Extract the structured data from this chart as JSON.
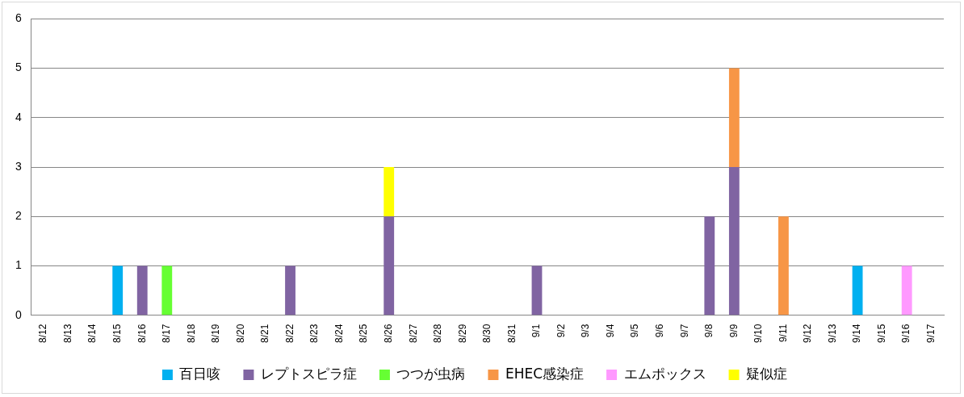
{
  "chart_data": {
    "type": "bar",
    "stacked": true,
    "categories": [
      "8/12",
      "8/13",
      "8/14",
      "8/15",
      "8/16",
      "8/17",
      "8/18",
      "8/19",
      "8/20",
      "8/21",
      "8/22",
      "8/23",
      "8/24",
      "8/25",
      "8/26",
      "8/27",
      "8/28",
      "8/29",
      "8/30",
      "8/31",
      "9/1",
      "9/2",
      "9/3",
      "9/4",
      "9/5",
      "9/6",
      "9/7",
      "9/8",
      "9/9",
      "9/10",
      "9/11",
      "9/12",
      "9/13",
      "9/14",
      "9/15",
      "9/16",
      "9/17"
    ],
    "series": [
      {
        "name": "百日咳",
        "color": "#00b0f0",
        "values": [
          0,
          0,
          0,
          1,
          0,
          0,
          0,
          0,
          0,
          0,
          0,
          0,
          0,
          0,
          0,
          0,
          0,
          0,
          0,
          0,
          0,
          0,
          0,
          0,
          0,
          0,
          0,
          0,
          0,
          0,
          0,
          0,
          0,
          1,
          0,
          0,
          0
        ]
      },
      {
        "name": "レプトスピラ症",
        "color": "#8064a2",
        "values": [
          0,
          0,
          0,
          0,
          1,
          0,
          0,
          0,
          0,
          0,
          1,
          0,
          0,
          0,
          2,
          0,
          0,
          0,
          0,
          0,
          1,
          0,
          0,
          0,
          0,
          0,
          0,
          2,
          3,
          0,
          0,
          0,
          0,
          0,
          0,
          0,
          0
        ]
      },
      {
        "name": "つつが虫病",
        "color": "#66ff33",
        "values": [
          0,
          0,
          0,
          0,
          0,
          1,
          0,
          0,
          0,
          0,
          0,
          0,
          0,
          0,
          0,
          0,
          0,
          0,
          0,
          0,
          0,
          0,
          0,
          0,
          0,
          0,
          0,
          0,
          0,
          0,
          0,
          0,
          0,
          0,
          0,
          0,
          0
        ]
      },
      {
        "name": "EHEC感染症",
        "color": "#f79646",
        "values": [
          0,
          0,
          0,
          0,
          0,
          0,
          0,
          0,
          0,
          0,
          0,
          0,
          0,
          0,
          0,
          0,
          0,
          0,
          0,
          0,
          0,
          0,
          0,
          0,
          0,
          0,
          0,
          0,
          2,
          0,
          2,
          0,
          0,
          0,
          0,
          0,
          0
        ]
      },
      {
        "name": "エムポックス",
        "color": "#ff99ff",
        "values": [
          0,
          0,
          0,
          0,
          0,
          0,
          0,
          0,
          0,
          0,
          0,
          0,
          0,
          0,
          0,
          0,
          0,
          0,
          0,
          0,
          0,
          0,
          0,
          0,
          0,
          0,
          0,
          0,
          0,
          0,
          0,
          0,
          0,
          0,
          0,
          1,
          0
        ]
      },
      {
        "name": "疑似症",
        "color": "#ffff00",
        "values": [
          0,
          0,
          0,
          0,
          0,
          0,
          0,
          0,
          0,
          0,
          0,
          0,
          0,
          0,
          1,
          0,
          0,
          0,
          0,
          0,
          0,
          0,
          0,
          0,
          0,
          0,
          0,
          0,
          0,
          0,
          0,
          0,
          0,
          0,
          0,
          0,
          0
        ]
      }
    ],
    "ylim": [
      0,
      6
    ],
    "yticks": [
      0,
      1,
      2,
      3,
      4,
      5,
      6
    ],
    "grid": "y",
    "legend": "bottom"
  }
}
